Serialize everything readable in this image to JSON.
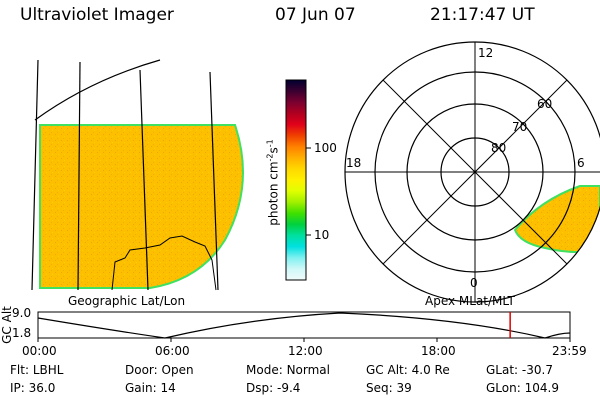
{
  "header": {
    "instrument": "Ultraviolet Imager",
    "date": "07 Jun 07",
    "time": "21:17:47 UT"
  },
  "left_panel": {
    "caption": "Geographic Lat/Lon"
  },
  "right_panel": {
    "caption": "Apex MLat/MLT",
    "mlt_labels": {
      "top": "12",
      "left": "18",
      "right": "6",
      "bottom": "0"
    },
    "lat_labels": [
      "60",
      "70",
      "80"
    ]
  },
  "colorbar": {
    "label": "photon cm",
    "exp1": "-2",
    "mid": "s",
    "exp2": "-1",
    "ticks": [
      "100",
      "10"
    ],
    "colors": [
      "#000030",
      "#3a0030",
      "#7a0030",
      "#b00020",
      "#e0001a",
      "#f04000",
      "#ff8000",
      "#ffb000",
      "#ffd800",
      "#fff000",
      "#e0ff00",
      "#a0f000",
      "#40e000",
      "#00d040",
      "#00e0a0",
      "#00e0e0",
      "#80f0f0",
      "#d0f8f8",
      "#f0fafa"
    ]
  },
  "altitude_plot": {
    "ylabel": "GC Alt",
    "ymax_label": "9.0",
    "ymin_label": "1.8",
    "xticks": [
      "00:00",
      "06:00",
      "12:00",
      "18:00",
      "23:59"
    ],
    "current_marker_hour": 21.3
  },
  "info": {
    "row1": [
      {
        "label": "Flt:",
        "value": "LBHL"
      },
      {
        "label": "Door:",
        "value": "Open"
      },
      {
        "label": "Mode:",
        "value": "Normal"
      },
      {
        "label": "GC Alt:",
        "value": "4.0 Re"
      },
      {
        "label": "GLat:",
        "value": "-30.7"
      }
    ],
    "row2": [
      {
        "label": "IP:",
        "value": "36.0"
      },
      {
        "label": "Gain:",
        "value": "14"
      },
      {
        "label": "Dsp:",
        "value": "-9.4"
      },
      {
        "label": "Seq:",
        "value": "39"
      },
      {
        "label": "GLon:",
        "value": "104.9"
      }
    ]
  },
  "colors": {
    "aurora_fill": "#fcc000",
    "aurora_edge": "#40e060",
    "marker": "#e00000"
  }
}
